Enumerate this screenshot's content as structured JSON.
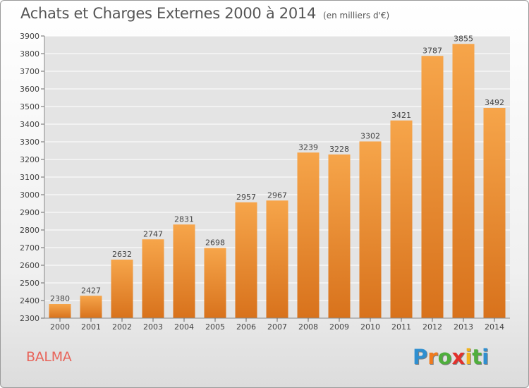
{
  "title": "Achats et Charges Externes 2000 à 2014",
  "subtitle": "(en milliers d'€)",
  "city": "BALMA",
  "logo": {
    "letters": [
      "P",
      "r",
      "o",
      "x",
      "i",
      "t",
      "i"
    ],
    "colors": [
      "#2f8fd0",
      "#f07b1e",
      "#4fae3d",
      "#e2312c",
      "#f2b21c",
      "#4fae3d",
      "#2f8fd0"
    ]
  },
  "colors": {
    "bar_light": "#f6a54a",
    "bar_dark": "#d8721c",
    "grid": "#ffffff",
    "plot_bg": "#e4e4e4"
  },
  "chart_data": {
    "type": "bar",
    "categories": [
      "2000",
      "2001",
      "2002",
      "2003",
      "2004",
      "2005",
      "2006",
      "2007",
      "2008",
      "2009",
      "2010",
      "2011",
      "2012",
      "2013",
      "2014"
    ],
    "values": [
      2380,
      2427,
      2632,
      2747,
      2831,
      2698,
      2957,
      2967,
      3239,
      3228,
      3302,
      3421,
      3787,
      3855,
      3492
    ],
    "yticks": [
      2300,
      2400,
      2500,
      2600,
      2700,
      2800,
      2900,
      3000,
      3100,
      3200,
      3300,
      3400,
      3500,
      3600,
      3700,
      3800,
      3900
    ],
    "ylim": [
      2300,
      3900
    ],
    "grid": true
  }
}
